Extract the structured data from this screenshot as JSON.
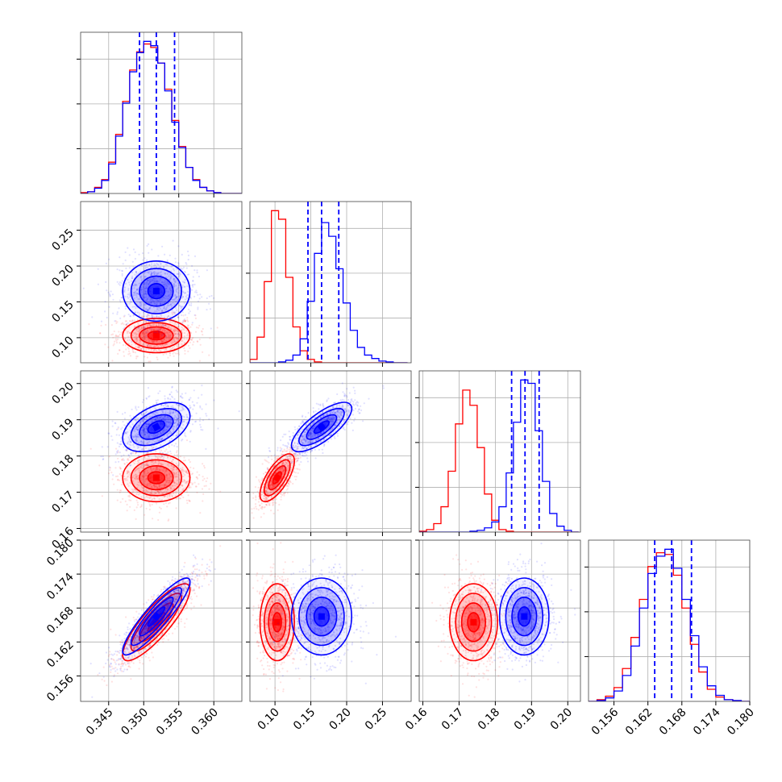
{
  "chart_data": {
    "type": "corner",
    "title": "",
    "colors": {
      "series_a": "#0000ff",
      "series_b": "#ff0000"
    },
    "grid": true,
    "parameters": [
      {
        "range": [
          0.341,
          0.364
        ],
        "ticks": [
          0.345,
          0.35,
          0.355,
          0.36
        ],
        "tick_labels": [
          "0.345",
          "0.350",
          "0.355",
          "0.360"
        ]
      },
      {
        "range": [
          0.065,
          0.29
        ],
        "ticks": [
          0.1,
          0.15,
          0.2,
          0.25
        ],
        "tick_labels": [
          "0.10",
          "0.15",
          "0.20",
          "0.25"
        ]
      },
      {
        "range": [
          0.159,
          0.2035
        ],
        "ticks": [
          0.16,
          0.17,
          0.18,
          0.19,
          0.2
        ],
        "tick_labels": [
          "0.16",
          "0.17",
          "0.18",
          "0.19",
          "0.20"
        ]
      },
      {
        "range": [
          0.1515,
          0.18
        ],
        "ticks": [
          0.156,
          0.162,
          0.168,
          0.174,
          0.18
        ],
        "tick_labels": [
          "0.156",
          "0.162",
          "0.168",
          "0.174",
          "0.180"
        ]
      }
    ],
    "series": [
      {
        "color": "#0000ff",
        "mean": [
          0.3518,
          0.165,
          0.188,
          0.1665
        ],
        "sigma": [
          0.0024,
          0.021,
          0.0034,
          0.0034
        ],
        "quantiles": [
          [
            0.3494,
            0.3518,
            0.3544
          ],
          [
            0.146,
            0.165,
            0.189
          ],
          [
            0.1845,
            0.1882,
            0.1921
          ],
          [
            0.1632,
            0.1662,
            0.1697
          ]
        ]
      },
      {
        "color": "#ff0000",
        "mean": [
          0.3518,
          0.103,
          0.174,
          0.1655
        ],
        "sigma": [
          0.0024,
          0.012,
          0.0033,
          0.0034
        ]
      }
    ],
    "correlations": [
      {
        "pair": [
          0,
          1
        ],
        "series_a": 0.0,
        "series_b": 0.0
      },
      {
        "pair": [
          0,
          2
        ],
        "series_a": 0.45,
        "series_b": 0.0
      },
      {
        "pair": [
          1,
          2
        ],
        "series_a": 0.75,
        "series_b": 0.7
      },
      {
        "pair": [
          0,
          3
        ],
        "series_a": 0.9,
        "series_b": 0.85
      },
      {
        "pair": [
          1,
          3
        ],
        "series_a": 0.0,
        "series_b": 0.0
      },
      {
        "pair": [
          2,
          3
        ],
        "series_a": 0.0,
        "series_b": 0.0
      }
    ],
    "histograms": [
      {
        "param": 0,
        "bin_edges": [
          0.341,
          0.342,
          0.343,
          0.344,
          0.345,
          0.346,
          0.347,
          0.348,
          0.349,
          0.35,
          0.351,
          0.352,
          0.353,
          0.354,
          0.355,
          0.356,
          0.357,
          0.358,
          0.359,
          0.36,
          0.361,
          0.362,
          0.363,
          0.364
        ],
        "series_a": [
          0,
          2,
          6,
          15,
          34,
          66,
          104,
          140,
          162,
          175,
          170,
          150,
          118,
          82,
          53,
          30,
          15,
          7,
          3,
          1,
          0,
          0,
          0
        ],
        "series_b": [
          1,
          2,
          7,
          16,
          36,
          68,
          106,
          142,
          163,
          172,
          168,
          150,
          120,
          84,
          54,
          30,
          16,
          7,
          3,
          1,
          0,
          0,
          0
        ]
      },
      {
        "param": 1,
        "bin_edges": [
          0.065,
          0.075,
          0.085,
          0.095,
          0.105,
          0.115,
          0.125,
          0.135,
          0.145,
          0.155,
          0.165,
          0.175,
          0.185,
          0.195,
          0.205,
          0.215,
          0.225,
          0.235,
          0.245,
          0.255,
          0.265,
          0.275,
          0.285
        ],
        "series_a": [
          0,
          0,
          0,
          0,
          1,
          3,
          9,
          28,
          72,
          128,
          164,
          148,
          110,
          70,
          38,
          18,
          9,
          5,
          2,
          1,
          0,
          0
        ],
        "series_b": [
          4,
          30,
          95,
          178,
          168,
          100,
          42,
          14,
          4,
          1,
          0,
          0,
          0,
          0,
          0,
          0,
          0,
          0,
          0,
          0,
          0,
          0
        ]
      },
      {
        "param": 2,
        "bin_edges": [
          0.159,
          0.161,
          0.163,
          0.165,
          0.167,
          0.169,
          0.171,
          0.173,
          0.175,
          0.177,
          0.179,
          0.181,
          0.183,
          0.185,
          0.187,
          0.189,
          0.191,
          0.193,
          0.195,
          0.197,
          0.199,
          0.201,
          0.203
        ],
        "series_a": [
          0,
          0,
          0,
          0,
          0,
          0,
          0,
          1,
          2,
          5,
          12,
          30,
          70,
          130,
          180,
          176,
          120,
          60,
          22,
          7,
          2,
          0
        ],
        "series_b": [
          1,
          3,
          10,
          30,
          72,
          128,
          168,
          150,
          100,
          45,
          14,
          3,
          1,
          0,
          0,
          0,
          0,
          0,
          0,
          0,
          0,
          0
        ]
      },
      {
        "param": 3,
        "bin_edges": [
          0.1515,
          0.153,
          0.1545,
          0.156,
          0.1575,
          0.159,
          0.1605,
          0.162,
          0.1635,
          0.165,
          0.1665,
          0.168,
          0.1695,
          0.171,
          0.1725,
          0.174,
          0.1755,
          0.177,
          0.1785,
          0.18
        ],
        "series_a": [
          0,
          1,
          4,
          12,
          30,
          64,
          108,
          148,
          168,
          176,
          154,
          118,
          76,
          40,
          18,
          7,
          2,
          1,
          0
        ],
        "series_b": [
          0,
          2,
          6,
          16,
          38,
          74,
          118,
          156,
          172,
          170,
          146,
          108,
          66,
          34,
          14,
          5,
          2,
          0,
          0
        ]
      }
    ]
  }
}
